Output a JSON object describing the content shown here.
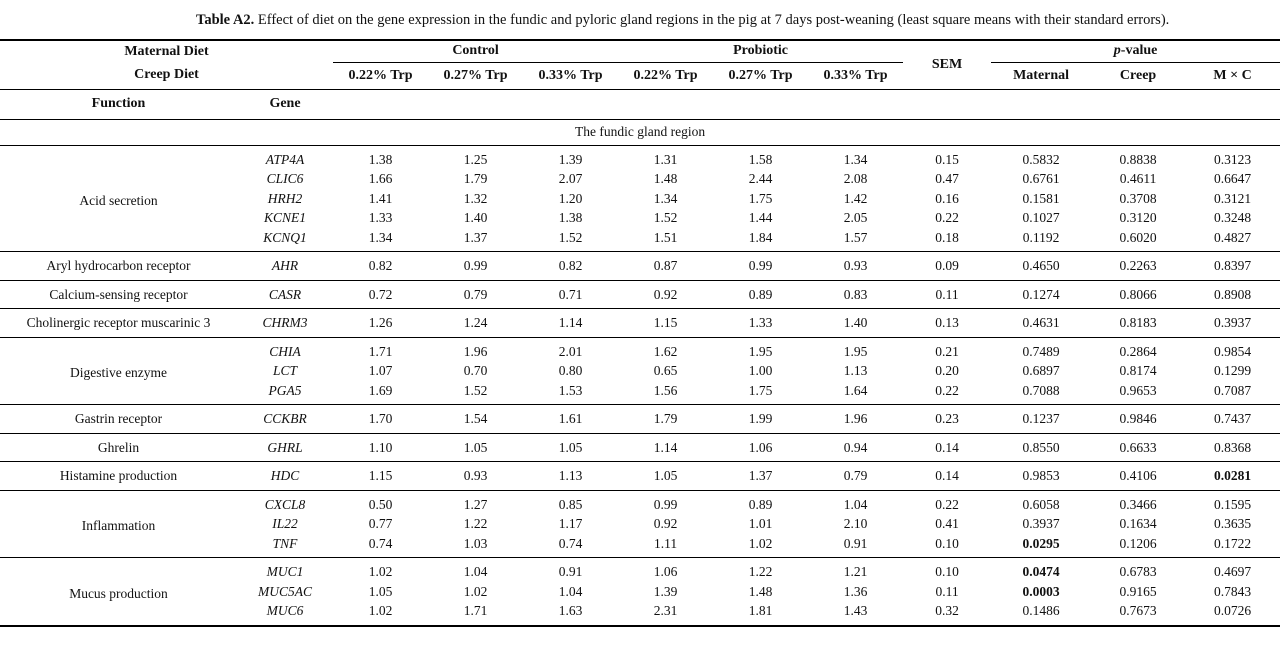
{
  "title": {
    "label": "Table A2.",
    "text": " Effect of diet on the gene expression in the fundic and pyloric gland regions in the pig at 7 days post-weaning (least square means with their standard errors)."
  },
  "table": {
    "header": {
      "maternal_diet": "Maternal Diet",
      "creep_diet": "Creep Diet",
      "control": "Control",
      "probiotic": "Probiotic",
      "sem": "SEM",
      "p_italic": "p",
      "p_rest": "-value",
      "function": "Function",
      "gene": "Gene",
      "trp_labels": [
        "0.22% Trp",
        "0.27% Trp",
        "0.33% Trp",
        "0.22% Trp",
        "0.27% Trp",
        "0.33% Trp"
      ],
      "p_cols": [
        "Maternal",
        "Creep",
        "M × C"
      ]
    },
    "section": "The fundic gland region",
    "groups": [
      {
        "function": "Acid secretion",
        "rows": [
          {
            "gene": "ATP4A",
            "values": [
              "1.38",
              "1.25",
              "1.39",
              "1.31",
              "1.58",
              "1.34"
            ],
            "sem": "0.15",
            "p": [
              "0.5832",
              "0.8838",
              "0.3123"
            ],
            "p_bold": [
              false,
              false,
              false
            ]
          },
          {
            "gene": "CLIC6",
            "values": [
              "1.66",
              "1.79",
              "2.07",
              "1.48",
              "2.44",
              "2.08"
            ],
            "sem": "0.47",
            "p": [
              "0.6761",
              "0.4611",
              "0.6647"
            ],
            "p_bold": [
              false,
              false,
              false
            ]
          },
          {
            "gene": "HRH2",
            "values": [
              "1.41",
              "1.32",
              "1.20",
              "1.34",
              "1.75",
              "1.42"
            ],
            "sem": "0.16",
            "p": [
              "0.1581",
              "0.3708",
              "0.3121"
            ],
            "p_bold": [
              false,
              false,
              false
            ]
          },
          {
            "gene": "KCNE1",
            "values": [
              "1.33",
              "1.40",
              "1.38",
              "1.52",
              "1.44",
              "2.05"
            ],
            "sem": "0.22",
            "p": [
              "0.1027",
              "0.3120",
              "0.3248"
            ],
            "p_bold": [
              false,
              false,
              false
            ]
          },
          {
            "gene": "KCNQ1",
            "values": [
              "1.34",
              "1.37",
              "1.52",
              "1.51",
              "1.84",
              "1.57"
            ],
            "sem": "0.18",
            "p": [
              "0.1192",
              "0.6020",
              "0.4827"
            ],
            "p_bold": [
              false,
              false,
              false
            ]
          }
        ]
      },
      {
        "function": "Aryl hydrocarbon receptor",
        "rows": [
          {
            "gene": "AHR",
            "values": [
              "0.82",
              "0.99",
              "0.82",
              "0.87",
              "0.99",
              "0.93"
            ],
            "sem": "0.09",
            "p": [
              "0.4650",
              "0.2263",
              "0.8397"
            ],
            "p_bold": [
              false,
              false,
              false
            ]
          }
        ]
      },
      {
        "function": "Calcium-sensing receptor",
        "rows": [
          {
            "gene": "CASR",
            "values": [
              "0.72",
              "0.79",
              "0.71",
              "0.92",
              "0.89",
              "0.83"
            ],
            "sem": "0.11",
            "p": [
              "0.1274",
              "0.8066",
              "0.8908"
            ],
            "p_bold": [
              false,
              false,
              false
            ]
          }
        ]
      },
      {
        "function": "Cholinergic receptor muscarinic 3",
        "rows": [
          {
            "gene": "CHRM3",
            "values": [
              "1.26",
              "1.24",
              "1.14",
              "1.15",
              "1.33",
              "1.40"
            ],
            "sem": "0.13",
            "p": [
              "0.4631",
              "0.8183",
              "0.3937"
            ],
            "p_bold": [
              false,
              false,
              false
            ]
          }
        ]
      },
      {
        "function": "Digestive enzyme",
        "rows": [
          {
            "gene": "CHIA",
            "values": [
              "1.71",
              "1.96",
              "2.01",
              "1.62",
              "1.95",
              "1.95"
            ],
            "sem": "0.21",
            "p": [
              "0.7489",
              "0.2864",
              "0.9854"
            ],
            "p_bold": [
              false,
              false,
              false
            ]
          },
          {
            "gene": "LCT",
            "values": [
              "1.07",
              "0.70",
              "0.80",
              "0.65",
              "1.00",
              "1.13"
            ],
            "sem": "0.20",
            "p": [
              "0.6897",
              "0.8174",
              "0.1299"
            ],
            "p_bold": [
              false,
              false,
              false
            ]
          },
          {
            "gene": "PGA5",
            "values": [
              "1.69",
              "1.52",
              "1.53",
              "1.56",
              "1.75",
              "1.64"
            ],
            "sem": "0.22",
            "p": [
              "0.7088",
              "0.9653",
              "0.7087"
            ],
            "p_bold": [
              false,
              false,
              false
            ]
          }
        ]
      },
      {
        "function": "Gastrin receptor",
        "rows": [
          {
            "gene": "CCKBR",
            "values": [
              "1.70",
              "1.54",
              "1.61",
              "1.79",
              "1.99",
              "1.96"
            ],
            "sem": "0.23",
            "p": [
              "0.1237",
              "0.9846",
              "0.7437"
            ],
            "p_bold": [
              false,
              false,
              false
            ]
          }
        ]
      },
      {
        "function": "Ghrelin",
        "rows": [
          {
            "gene": "GHRL",
            "values": [
              "1.10",
              "1.05",
              "1.05",
              "1.14",
              "1.06",
              "0.94"
            ],
            "sem": "0.14",
            "p": [
              "0.8550",
              "0.6633",
              "0.8368"
            ],
            "p_bold": [
              false,
              false,
              false
            ]
          }
        ]
      },
      {
        "function": "Histamine production",
        "rows": [
          {
            "gene": "HDC",
            "values": [
              "1.15",
              "0.93",
              "1.13",
              "1.05",
              "1.37",
              "0.79"
            ],
            "sem": "0.14",
            "p": [
              "0.9853",
              "0.4106",
              "0.0281"
            ],
            "p_bold": [
              false,
              false,
              true
            ]
          }
        ]
      },
      {
        "function": "Inflammation",
        "rows": [
          {
            "gene": "CXCL8",
            "values": [
              "0.50",
              "1.27",
              "0.85",
              "0.99",
              "0.89",
              "1.04"
            ],
            "sem": "0.22",
            "p": [
              "0.6058",
              "0.3466",
              "0.1595"
            ],
            "p_bold": [
              false,
              false,
              false
            ]
          },
          {
            "gene": "IL22",
            "values": [
              "0.77",
              "1.22",
              "1.17",
              "0.92",
              "1.01",
              "2.10"
            ],
            "sem": "0.41",
            "p": [
              "0.3937",
              "0.1634",
              "0.3635"
            ],
            "p_bold": [
              false,
              false,
              false
            ]
          },
          {
            "gene": "TNF",
            "values": [
              "0.74",
              "1.03",
              "0.74",
              "1.11",
              "1.02",
              "0.91"
            ],
            "sem": "0.10",
            "p": [
              "0.0295",
              "0.1206",
              "0.1722"
            ],
            "p_bold": [
              true,
              false,
              false
            ]
          }
        ]
      },
      {
        "function": "Mucus production",
        "rows": [
          {
            "gene": "MUC1",
            "values": [
              "1.02",
              "1.04",
              "0.91",
              "1.06",
              "1.22",
              "1.21"
            ],
            "sem": "0.10",
            "p": [
              "0.0474",
              "0.6783",
              "0.4697"
            ],
            "p_bold": [
              true,
              false,
              false
            ]
          },
          {
            "gene": "MUC5AC",
            "values": [
              "1.05",
              "1.02",
              "1.04",
              "1.39",
              "1.48",
              "1.36"
            ],
            "sem": "0.11",
            "p": [
              "0.0003",
              "0.9165",
              "0.7843"
            ],
            "p_bold": [
              true,
              false,
              false
            ]
          },
          {
            "gene": "MUC6",
            "values": [
              "1.02",
              "1.71",
              "1.63",
              "2.31",
              "1.81",
              "1.43"
            ],
            "sem": "0.32",
            "p": [
              "0.1486",
              "0.7673",
              "0.0726"
            ],
            "p_bold": [
              false,
              false,
              false
            ]
          }
        ]
      }
    ]
  }
}
